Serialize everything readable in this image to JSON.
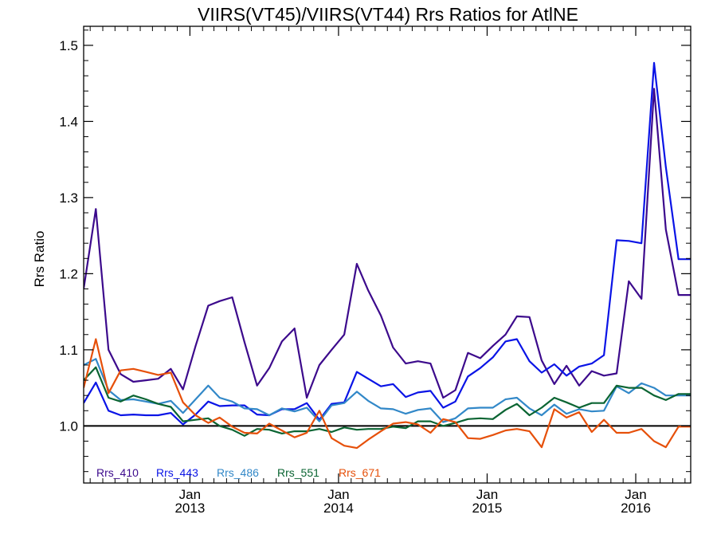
{
  "chart_data": {
    "type": "line",
    "title": "VIIRS(VT45)/VIIRS(VT44)  Rrs Ratios for AtlNE",
    "xlabel": "",
    "ylabel": "Rrs Ratio",
    "xlim": [
      "2012-04-15",
      "2016-05-15"
    ],
    "ylim": [
      0.925,
      1.525
    ],
    "yticks": [
      "1.0",
      "1.1",
      "1.2",
      "1.3",
      "1.4",
      "1.5"
    ],
    "xticks": [
      {
        "month": "Jan",
        "year": "2013",
        "date": "2013-01-01"
      },
      {
        "month": "Jan",
        "year": "2014",
        "date": "2014-01-01"
      },
      {
        "month": "Jan",
        "year": "2015",
        "date": "2015-01-01"
      },
      {
        "month": "Jan",
        "year": "2016",
        "date": "2016-01-01"
      }
    ],
    "reference_line": 1.0,
    "grid": false,
    "legend_position": "bottom-left",
    "x": [
      "2012-04-15",
      "2012-05-15",
      "2012-06-15",
      "2012-07-15",
      "2012-08-15",
      "2012-09-15",
      "2012-10-15",
      "2012-11-15",
      "2012-12-15",
      "2013-01-15",
      "2013-02-15",
      "2013-03-15",
      "2013-04-15",
      "2013-05-15",
      "2013-06-15",
      "2013-07-15",
      "2013-08-15",
      "2013-09-15",
      "2013-10-15",
      "2013-11-15",
      "2013-12-15",
      "2014-01-15",
      "2014-02-15",
      "2014-03-15",
      "2014-04-15",
      "2014-05-15",
      "2014-06-15",
      "2014-07-15",
      "2014-08-15",
      "2014-09-15",
      "2014-10-15",
      "2014-11-15",
      "2014-12-15",
      "2015-01-15",
      "2015-02-15",
      "2015-03-15",
      "2015-04-15",
      "2015-05-15",
      "2015-06-15",
      "2015-07-15",
      "2015-08-15",
      "2015-09-15",
      "2015-10-15",
      "2015-11-15",
      "2015-12-15",
      "2016-01-15",
      "2016-02-15",
      "2016-03-15",
      "2016-04-15",
      "2016-05-15"
    ],
    "series": [
      {
        "name": "Rrs_410",
        "color": "#3c0a8c",
        "values": [
          1.18,
          1.285,
          1.1,
          1.068,
          1.058,
          1.06,
          1.062,
          1.075,
          1.048,
          1.105,
          1.158,
          1.164,
          1.169,
          1.11,
          1.053,
          1.076,
          1.111,
          1.128,
          1.037,
          1.08,
          1.1,
          1.12,
          1.213,
          1.178,
          1.145,
          1.103,
          1.082,
          1.085,
          1.082,
          1.037,
          1.047,
          1.096,
          1.089,
          1.105,
          1.12,
          1.144,
          1.143,
          1.086,
          1.055,
          1.079,
          1.053,
          1.072,
          1.066,
          1.069,
          1.19,
          1.167,
          1.443,
          1.258,
          1.172,
          1.172
        ]
      },
      {
        "name": "Rrs_443",
        "color": "#0a14e6",
        "values": [
          1.03,
          1.057,
          1.02,
          1.014,
          1.015,
          1.014,
          1.014,
          1.017,
          1.002,
          1.015,
          1.032,
          1.026,
          1.027,
          1.027,
          1.015,
          1.014,
          1.022,
          1.022,
          1.03,
          1.008,
          1.029,
          1.031,
          1.071,
          1.062,
          1.052,
          1.055,
          1.038,
          1.044,
          1.046,
          1.024,
          1.032,
          1.065,
          1.076,
          1.09,
          1.111,
          1.114,
          1.085,
          1.07,
          1.081,
          1.066,
          1.078,
          1.082,
          1.093,
          1.244,
          1.243,
          1.24,
          1.477,
          1.34,
          1.219,
          1.219
        ]
      },
      {
        "name": "Rrs_486",
        "color": "#3288c8",
        "values": [
          1.08,
          1.088,
          1.047,
          1.034,
          1.035,
          1.032,
          1.029,
          1.033,
          1.017,
          1.035,
          1.053,
          1.037,
          1.032,
          1.023,
          1.022,
          1.014,
          1.023,
          1.019,
          1.024,
          1.006,
          1.027,
          1.03,
          1.045,
          1.033,
          1.023,
          1.022,
          1.016,
          1.021,
          1.023,
          1.005,
          1.01,
          1.023,
          1.024,
          1.024,
          1.035,
          1.037,
          1.023,
          1.014,
          1.028,
          1.016,
          1.022,
          1.019,
          1.02,
          1.052,
          1.043,
          1.056,
          1.05,
          1.04,
          1.04,
          1.04
        ]
      },
      {
        "name": "Rrs_551",
        "color": "#0a6432",
        "values": [
          1.06,
          1.077,
          1.037,
          1.032,
          1.04,
          1.035,
          1.029,
          1.025,
          1.006,
          1.008,
          1.01,
          1.0,
          0.995,
          0.987,
          0.996,
          0.995,
          0.99,
          0.993,
          0.993,
          0.996,
          0.992,
          0.998,
          0.995,
          0.996,
          0.996,
          0.999,
          0.997,
          1.006,
          1.006,
          1.0,
          1.004,
          1.009,
          1.01,
          1.009,
          1.021,
          1.029,
          1.014,
          1.024,
          1.037,
          1.031,
          1.024,
          1.03,
          1.03,
          1.053,
          1.05,
          1.05,
          1.04,
          1.034,
          1.042,
          1.042
        ]
      },
      {
        "name": "Rrs_671",
        "color": "#e6500a",
        "values": [
          1.05,
          1.114,
          1.043,
          1.073,
          1.075,
          1.071,
          1.067,
          1.07,
          1.031,
          1.014,
          1.004,
          1.011,
          0.999,
          0.991,
          0.99,
          1.003,
          0.994,
          0.985,
          0.991,
          1.02,
          0.984,
          0.974,
          0.971,
          0.982,
          0.993,
          1.003,
          1.005,
          1.002,
          0.991,
          1.009,
          1.005,
          0.984,
          0.983,
          0.988,
          0.994,
          0.996,
          0.993,
          0.972,
          1.022,
          1.011,
          1.018,
          0.992,
          1.008,
          0.991,
          0.991,
          0.996,
          0.98,
          0.972,
          0.999,
          0.999
        ]
      }
    ]
  }
}
